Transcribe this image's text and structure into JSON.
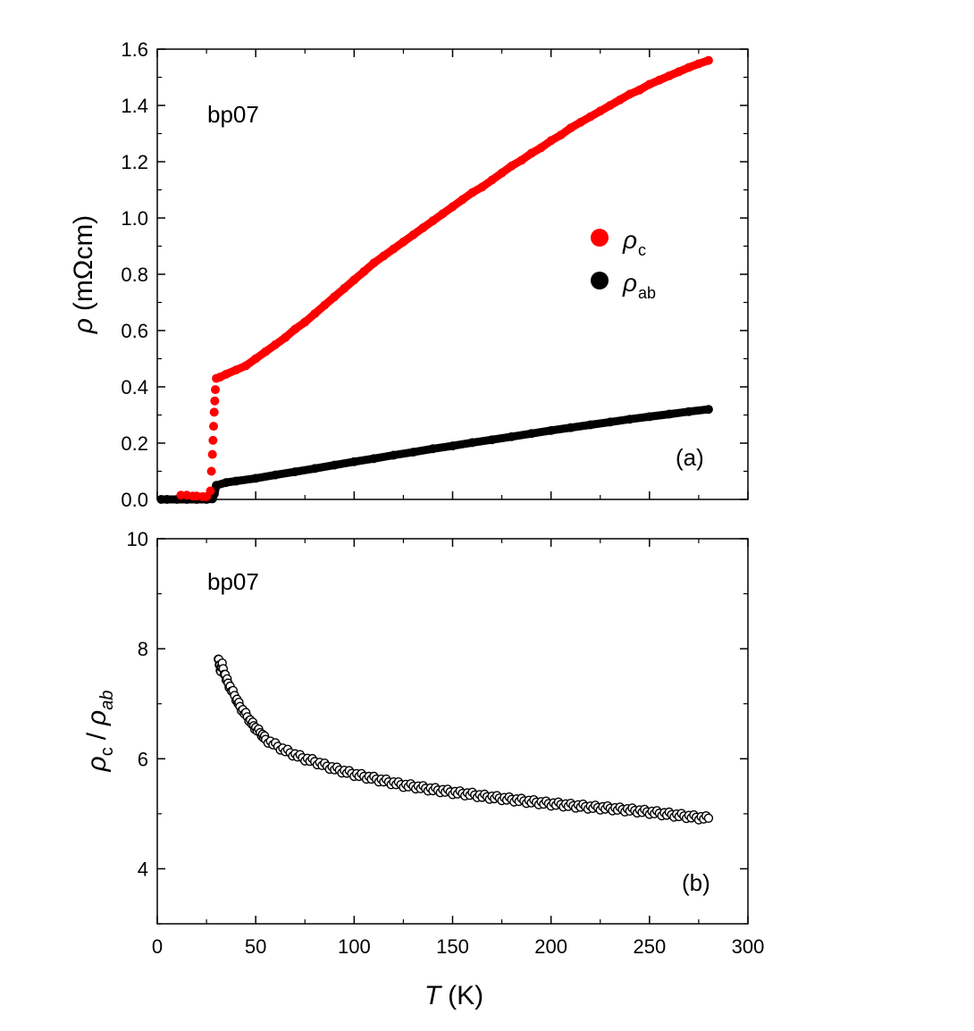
{
  "chart_data": [
    {
      "type": "scatter",
      "panel": "a",
      "sample_label": "bp07",
      "panel_label": "(a)",
      "ylabel_symbol": "ρ",
      "ylabel_unit": "(mΩcm)",
      "xlim": [
        0,
        300
      ],
      "ylim": [
        0.0,
        1.6
      ],
      "y_ticks": [
        "0.0",
        "0.2",
        "0.4",
        "0.6",
        "0.8",
        "1.0",
        "1.2",
        "1.4",
        "1.6"
      ],
      "y_tick_values": [
        0.0,
        0.2,
        0.4,
        0.6,
        0.8,
        1.0,
        1.2,
        1.4,
        1.6
      ],
      "legend": [
        {
          "symbol": "ρ",
          "subscript": "c",
          "color": "#ff0000"
        },
        {
          "symbol": "ρ",
          "subscript": "ab",
          "color": "#000000"
        }
      ],
      "series": [
        {
          "name": "rho_c",
          "color": "#ff0000",
          "points": [
            [
              12,
              0.015
            ],
            [
              15,
              0.015
            ],
            [
              18,
              0.012
            ],
            [
              20,
              0.012
            ],
            [
              23,
              0.01
            ],
            [
              25,
              0.01
            ],
            [
              27,
              0.03
            ],
            [
              27.5,
              0.1
            ],
            [
              28,
              0.16
            ],
            [
              28.3,
              0.21
            ],
            [
              28.6,
              0.26
            ],
            [
              28.9,
              0.31
            ],
            [
              29.2,
              0.35
            ],
            [
              29.5,
              0.39
            ],
            [
              30,
              0.43
            ],
            [
              32,
              0.435
            ],
            [
              35,
              0.445
            ],
            [
              40,
              0.46
            ],
            [
              45,
              0.475
            ],
            [
              50,
              0.5
            ],
            [
              55,
              0.525
            ],
            [
              60,
              0.55
            ],
            [
              65,
              0.575
            ],
            [
              70,
              0.605
            ],
            [
              75,
              0.63
            ],
            [
              80,
              0.66
            ],
            [
              85,
              0.69
            ],
            [
              90,
              0.72
            ],
            [
              95,
              0.75
            ],
            [
              100,
              0.78
            ],
            [
              105,
              0.81
            ],
            [
              110,
              0.84
            ],
            [
              115,
              0.865
            ],
            [
              120,
              0.89
            ],
            [
              125,
              0.915
            ],
            [
              130,
              0.94
            ],
            [
              135,
              0.965
            ],
            [
              140,
              0.99
            ],
            [
              145,
              1.015
            ],
            [
              150,
              1.04
            ],
            [
              155,
              1.065
            ],
            [
              160,
              1.09
            ],
            [
              165,
              1.11
            ],
            [
              170,
              1.135
            ],
            [
              175,
              1.16
            ],
            [
              180,
              1.185
            ],
            [
              185,
              1.205
            ],
            [
              190,
              1.23
            ],
            [
              195,
              1.25
            ],
            [
              200,
              1.275
            ],
            [
              205,
              1.295
            ],
            [
              210,
              1.32
            ],
            [
              215,
              1.34
            ],
            [
              220,
              1.36
            ],
            [
              225,
              1.38
            ],
            [
              230,
              1.4
            ],
            [
              235,
              1.42
            ],
            [
              240,
              1.44
            ],
            [
              245,
              1.455
            ],
            [
              250,
              1.475
            ],
            [
              255,
              1.49
            ],
            [
              260,
              1.505
            ],
            [
              265,
              1.52
            ],
            [
              270,
              1.535
            ],
            [
              275,
              1.548
            ],
            [
              280,
              1.56
            ]
          ]
        },
        {
          "name": "rho_ab",
          "color": "#000000",
          "points": [
            [
              2,
              0.0
            ],
            [
              5,
              0.0
            ],
            [
              10,
              0.0
            ],
            [
              15,
              0.0
            ],
            [
              20,
              0.0
            ],
            [
              25,
              0.0
            ],
            [
              28,
              0.002
            ],
            [
              29,
              0.02
            ],
            [
              30,
              0.05
            ],
            [
              35,
              0.06
            ],
            [
              40,
              0.065
            ],
            [
              50,
              0.075
            ],
            [
              60,
              0.087
            ],
            [
              70,
              0.098
            ],
            [
              80,
              0.11
            ],
            [
              90,
              0.122
            ],
            [
              100,
              0.134
            ],
            [
              110,
              0.145
            ],
            [
              120,
              0.157
            ],
            [
              130,
              0.168
            ],
            [
              140,
              0.18
            ],
            [
              150,
              0.19
            ],
            [
              160,
              0.202
            ],
            [
              170,
              0.212
            ],
            [
              180,
              0.223
            ],
            [
              190,
              0.234
            ],
            [
              200,
              0.245
            ],
            [
              210,
              0.255
            ],
            [
              220,
              0.265
            ],
            [
              230,
              0.275
            ],
            [
              240,
              0.285
            ],
            [
              250,
              0.294
            ],
            [
              260,
              0.303
            ],
            [
              270,
              0.312
            ],
            [
              280,
              0.32
            ]
          ]
        }
      ]
    },
    {
      "type": "scatter",
      "panel": "b",
      "sample_label": "bp07",
      "panel_label": "(b)",
      "ylabel": "ρc / ρab",
      "xlabel_symbol": "T",
      "xlabel_unit": "(K)",
      "xlim": [
        0,
        300
      ],
      "ylim": [
        3.0,
        10.0
      ],
      "x_ticks": [
        "0",
        "50",
        "100",
        "150",
        "200",
        "250",
        "300"
      ],
      "x_tick_values": [
        0,
        50,
        100,
        150,
        200,
        250,
        300
      ],
      "y_ticks": [
        "4",
        "6",
        "8",
        "10"
      ],
      "y_tick_values": [
        4,
        6,
        8,
        10
      ],
      "series": [
        {
          "name": "rho_c/rho_ab",
          "marker": "open-circle",
          "points": [
            [
              31,
              7.85
            ],
            [
              32,
              7.6
            ],
            [
              33,
              7.7
            ],
            [
              35,
              7.45
            ],
            [
              37,
              7.3
            ],
            [
              40,
              7.1
            ],
            [
              42,
              6.95
            ],
            [
              45,
              6.8
            ],
            [
              48,
              6.65
            ],
            [
              50,
              6.55
            ],
            [
              53,
              6.45
            ],
            [
              55,
              6.35
            ],
            [
              60,
              6.25
            ],
            [
              65,
              6.15
            ],
            [
              70,
              6.07
            ],
            [
              75,
              6.0
            ],
            [
              80,
              5.95
            ],
            [
              85,
              5.88
            ],
            [
              90,
              5.82
            ],
            [
              95,
              5.77
            ],
            [
              100,
              5.72
            ],
            [
              105,
              5.68
            ],
            [
              110,
              5.64
            ],
            [
              115,
              5.6
            ],
            [
              120,
              5.56
            ],
            [
              125,
              5.52
            ],
            [
              130,
              5.5
            ],
            [
              135,
              5.47
            ],
            [
              140,
              5.44
            ],
            [
              145,
              5.42
            ],
            [
              150,
              5.39
            ],
            [
              155,
              5.37
            ],
            [
              160,
              5.35
            ],
            [
              165,
              5.32
            ],
            [
              170,
              5.3
            ],
            [
              175,
              5.28
            ],
            [
              180,
              5.26
            ],
            [
              185,
              5.24
            ],
            [
              190,
              5.22
            ],
            [
              195,
              5.2
            ],
            [
              200,
              5.18
            ],
            [
              205,
              5.17
            ],
            [
              210,
              5.15
            ],
            [
              215,
              5.14
            ],
            [
              220,
              5.12
            ],
            [
              225,
              5.11
            ],
            [
              230,
              5.1
            ],
            [
              235,
              5.08
            ],
            [
              240,
              5.07
            ],
            [
              245,
              5.05
            ],
            [
              250,
              5.03
            ],
            [
              255,
              5.01
            ],
            [
              260,
              4.99
            ],
            [
              265,
              4.97
            ],
            [
              270,
              4.95
            ],
            [
              275,
              4.93
            ],
            [
              280,
              4.92
            ]
          ]
        }
      ]
    }
  ]
}
